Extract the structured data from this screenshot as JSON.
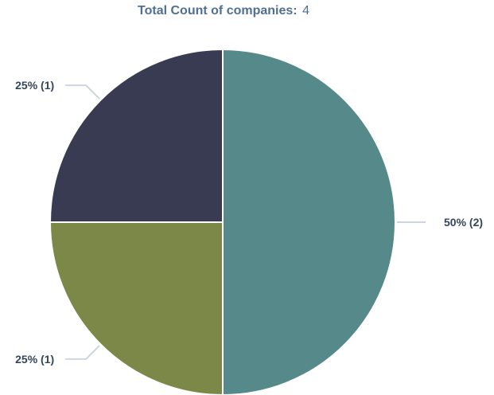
{
  "header": {
    "total_label": "Total Count of companies:",
    "total_value": "4"
  },
  "chart_data": {
    "type": "pie",
    "title": "",
    "categories": [
      "",
      "",
      ""
    ],
    "values": [
      2,
      1,
      1
    ],
    "percent_labels": [
      "50% (2)",
      "25% (1)",
      "25% (1)"
    ],
    "colors": [
      "#568a8a",
      "#7b8848",
      "#383b51"
    ],
    "start_angle_deg": 0,
    "direction": "clockwise",
    "legend": "none",
    "label_leader_color": "#cbd6e2"
  }
}
